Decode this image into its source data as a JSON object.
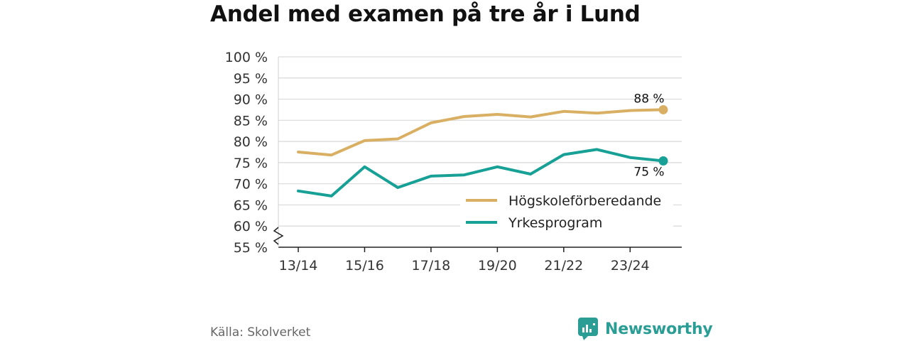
{
  "title": "Andel med examen på tre år i Lund",
  "source": "Källa: Skolverket",
  "brand": {
    "name": "Newsworthy",
    "icon": "newsworthy-logo-icon",
    "color": "#2a9d94"
  },
  "chart_data": {
    "type": "line",
    "ylim": [
      55,
      100
    ],
    "yticks": [
      55,
      60,
      65,
      70,
      75,
      80,
      85,
      90,
      95,
      100
    ],
    "ytick_suffix": " %",
    "y_axis_break": true,
    "grid": true,
    "legend_position": "bottom-right",
    "x": [
      "13/14",
      "14/15",
      "15/16",
      "16/17",
      "17/18",
      "18/19",
      "19/20",
      "20/21",
      "21/22",
      "22/23",
      "23/24",
      "24/25"
    ],
    "xticks_shown": [
      "13/14",
      "15/16",
      "17/18",
      "19/20",
      "21/22",
      "23/24"
    ],
    "series": [
      {
        "name": "Högskoleförberedande",
        "color": "#d9b063",
        "values": [
          77.5,
          76.8,
          80.2,
          80.6,
          84.4,
          85.9,
          86.4,
          85.8,
          87.1,
          86.7,
          87.3,
          87.5
        ],
        "end_label": "88 %",
        "end_label_position": "above"
      },
      {
        "name": "Yrkesprogram",
        "color": "#17a096",
        "values": [
          68.3,
          67.1,
          74.0,
          69.1,
          71.8,
          72.1,
          74.0,
          72.3,
          76.9,
          78.1,
          76.2,
          75.4
        ],
        "end_label": "75 %",
        "end_label_position": "below"
      }
    ]
  }
}
